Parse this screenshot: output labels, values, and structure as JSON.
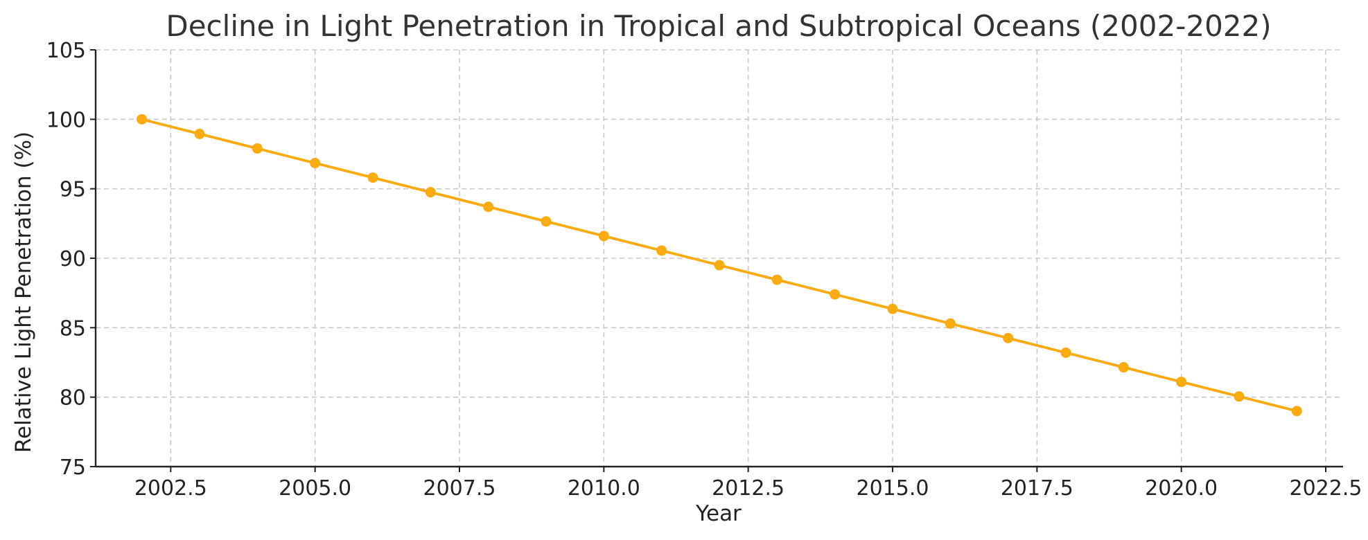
{
  "chart_data": {
    "type": "line",
    "title": "Decline in Light Penetration in Tropical and Subtropical Oceans (2002-2022)",
    "xlabel": "Year",
    "ylabel": "Relative Light Penetration (%)",
    "xlim": [
      2001.2,
      2022.8
    ],
    "ylim": [
      75,
      105
    ],
    "x_ticks": [
      2002.5,
      2005.0,
      2007.5,
      2010.0,
      2012.5,
      2015.0,
      2017.5,
      2020.0,
      2022.5
    ],
    "x_tick_labels": [
      "2002.5",
      "2005.0",
      "2007.5",
      "2010.0",
      "2012.5",
      "2015.0",
      "2017.5",
      "2020.0",
      "2022.5"
    ],
    "y_ticks": [
      75,
      80,
      85,
      90,
      95,
      100,
      105
    ],
    "y_tick_labels": [
      "75",
      "80",
      "85",
      "90",
      "95",
      "100",
      "105"
    ],
    "grid": true,
    "legend": "none",
    "color": "#FBAA0F",
    "x": [
      2002,
      2003,
      2004,
      2005,
      2006,
      2007,
      2008,
      2009,
      2010,
      2011,
      2012,
      2013,
      2014,
      2015,
      2016,
      2017,
      2018,
      2019,
      2020,
      2021,
      2022
    ],
    "values": [
      100.0,
      98.95,
      97.9,
      96.85,
      95.8,
      94.75,
      93.7,
      92.65,
      91.6,
      90.55,
      89.5,
      88.45,
      87.4,
      86.35,
      85.3,
      84.25,
      83.2,
      82.15,
      81.1,
      80.05,
      79.0
    ]
  }
}
